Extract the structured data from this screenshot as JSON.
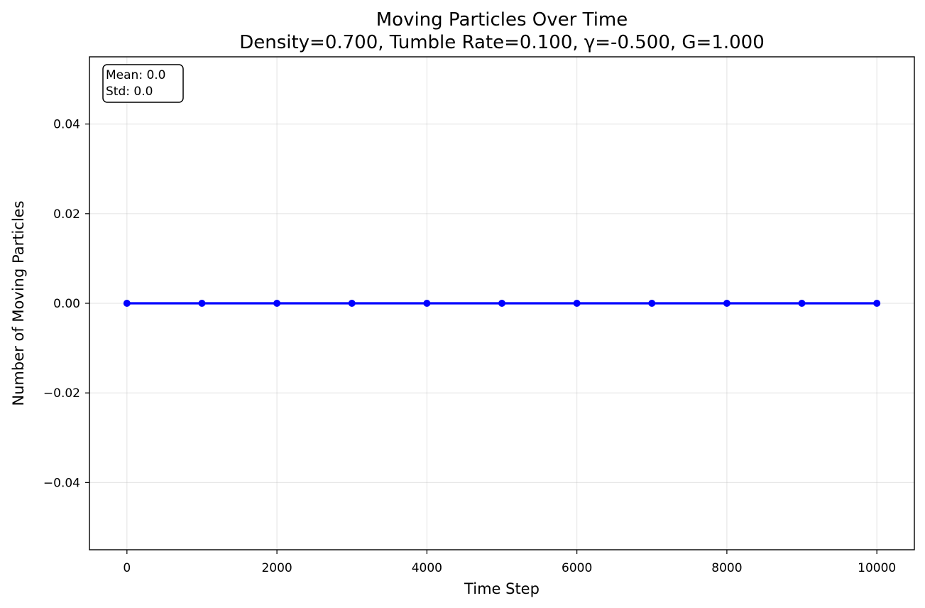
{
  "chart_data": {
    "type": "line",
    "title": "Moving Particles Over Time",
    "subtitle": "Density=0.700, Tumble Rate=0.100, γ=-0.500, G=1.000",
    "xlabel": "Time Step",
    "ylabel": "Number of Moving Particles",
    "xlim": [
      -500,
      10500
    ],
    "ylim": [
      -0.055,
      0.055
    ],
    "x_ticks": [
      0,
      2000,
      4000,
      6000,
      8000,
      10000
    ],
    "x_tick_labels": [
      "0",
      "2000",
      "4000",
      "6000",
      "8000",
      "10000"
    ],
    "y_ticks": [
      0.04,
      0.02,
      0.0,
      -0.02,
      -0.04
    ],
    "y_tick_labels": [
      "0.04",
      "0.02",
      "0.00",
      "−0.02",
      "−0.04"
    ],
    "grid": true,
    "series": [
      {
        "color": "#0000ff",
        "marker": "circle",
        "x": [
          0,
          1000,
          2000,
          3000,
          4000,
          5000,
          6000,
          7000,
          8000,
          9000,
          10000
        ],
        "y": [
          0,
          0,
          0,
          0,
          0,
          0,
          0,
          0,
          0,
          0,
          0
        ]
      }
    ],
    "annotation": {
      "lines": [
        "Mean: 0.0",
        "Std: 0.0"
      ],
      "placement": "top-left"
    }
  }
}
